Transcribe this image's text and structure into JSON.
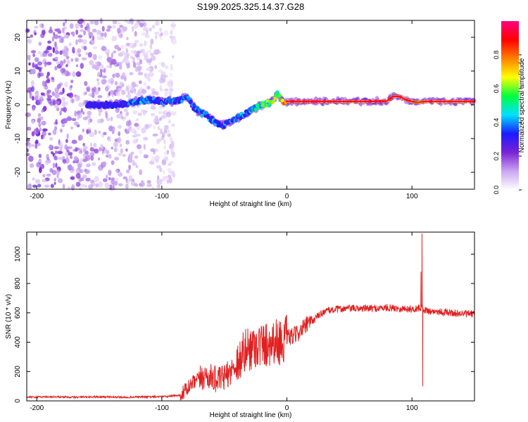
{
  "title": "S199.2025.325.14.37.G28",
  "chart_data": [
    {
      "type": "heatmap",
      "xlabel": "Height of straight line (km)",
      "ylabel": "Frequency (Hz)",
      "xlim": [
        -208,
        150
      ],
      "ylim": [
        -25,
        25
      ],
      "xticks": [
        -200,
        -100,
        0,
        100
      ],
      "yticks": [
        -20,
        -10,
        0,
        10,
        20
      ],
      "colorbar": {
        "label": "Normalized spectral amplitude",
        "range": [
          0,
          1
        ],
        "ticks": [
          0.0,
          0.2,
          0.4,
          0.6,
          0.8
        ],
        "colors": [
          "#ffffff",
          "#c9a6f0",
          "#7b22d6",
          "#1a1aff",
          "#00e0ff",
          "#00ff40",
          "#ffff00",
          "#ff8000",
          "#ff0000",
          "#ff0080"
        ]
      },
      "ridge": {
        "x": [
          -160,
          -140,
          -130,
          -120,
          -110,
          -100,
          -90,
          -85,
          -80,
          -75,
          -70,
          -65,
          -60,
          -55,
          -50,
          -45,
          -40,
          -35,
          -30,
          -25,
          -20,
          -15,
          -10,
          -8,
          -5,
          -3,
          0,
          20,
          40,
          60,
          80,
          85,
          90,
          95,
          100,
          105,
          110,
          130,
          150
        ],
        "y": [
          0,
          0,
          0.3,
          1.0,
          1.5,
          1.0,
          1.0,
          1.5,
          2.5,
          -0.5,
          -2,
          -3,
          -4.5,
          -5.5,
          -6,
          -5,
          -4,
          -3,
          -2,
          -1,
          0,
          0.5,
          1.5,
          3.5,
          1.5,
          0.8,
          1.0,
          1.0,
          1.0,
          1.0,
          1.1,
          2.5,
          2.5,
          1.5,
          1.0,
          0.7,
          1.0,
          1.0,
          1.0
        ],
        "amplitude": [
          0.3,
          0.35,
          0.4,
          0.45,
          0.45,
          0.45,
          0.45,
          0.45,
          0.45,
          0.45,
          0.45,
          0.45,
          0.45,
          0.45,
          0.45,
          0.45,
          0.45,
          0.5,
          0.5,
          0.55,
          0.6,
          0.65,
          0.75,
          0.6,
          0.8,
          0.85,
          0.9,
          0.9,
          0.9,
          0.9,
          0.9,
          0.9,
          0.9,
          0.9,
          0.85,
          0.8,
          0.9,
          0.9,
          0.9
        ]
      },
      "noise_region": {
        "x_range": [
          -208,
          -100
        ],
        "amplitude": 0.15
      }
    },
    {
      "type": "line",
      "xlabel": "Height of straight line (km)",
      "ylabel": "SNR (10 * v/v)",
      "xlim": [
        -208,
        150
      ],
      "ylim": [
        0,
        1150
      ],
      "xticks": [
        -200,
        -100,
        0,
        100
      ],
      "yticks": [
        0,
        200,
        400,
        600,
        800,
        1000
      ],
      "series": [
        {
          "name": "SNR",
          "color": "#e02020",
          "x": [
            -208,
            -190,
            -170,
            -150,
            -130,
            -110,
            -95,
            -85,
            -80,
            -75,
            -70,
            -65,
            -60,
            -55,
            -50,
            -45,
            -40,
            -35,
            -30,
            -25,
            -20,
            -15,
            -10,
            -5,
            0,
            5,
            10,
            15,
            20,
            25,
            30,
            40,
            50,
            60,
            70,
            80,
            90,
            100,
            105,
            108,
            110,
            115,
            120,
            130,
            140,
            150
          ],
          "y": [
            25,
            28,
            25,
            28,
            25,
            28,
            30,
            40,
            80,
            120,
            150,
            170,
            160,
            140,
            160,
            200,
            250,
            320,
            360,
            380,
            380,
            390,
            410,
            400,
            430,
            440,
            470,
            510,
            540,
            580,
            610,
            625,
            630,
            630,
            630,
            635,
            630,
            625,
            630,
            640,
            620,
            610,
            610,
            600,
            595,
            590
          ],
          "spikes": [
            {
              "x": 108,
              "y": 1140
            },
            {
              "x": 108.6,
              "y": 100
            },
            {
              "x": 107.2,
              "y": 880
            }
          ]
        }
      ]
    }
  ]
}
